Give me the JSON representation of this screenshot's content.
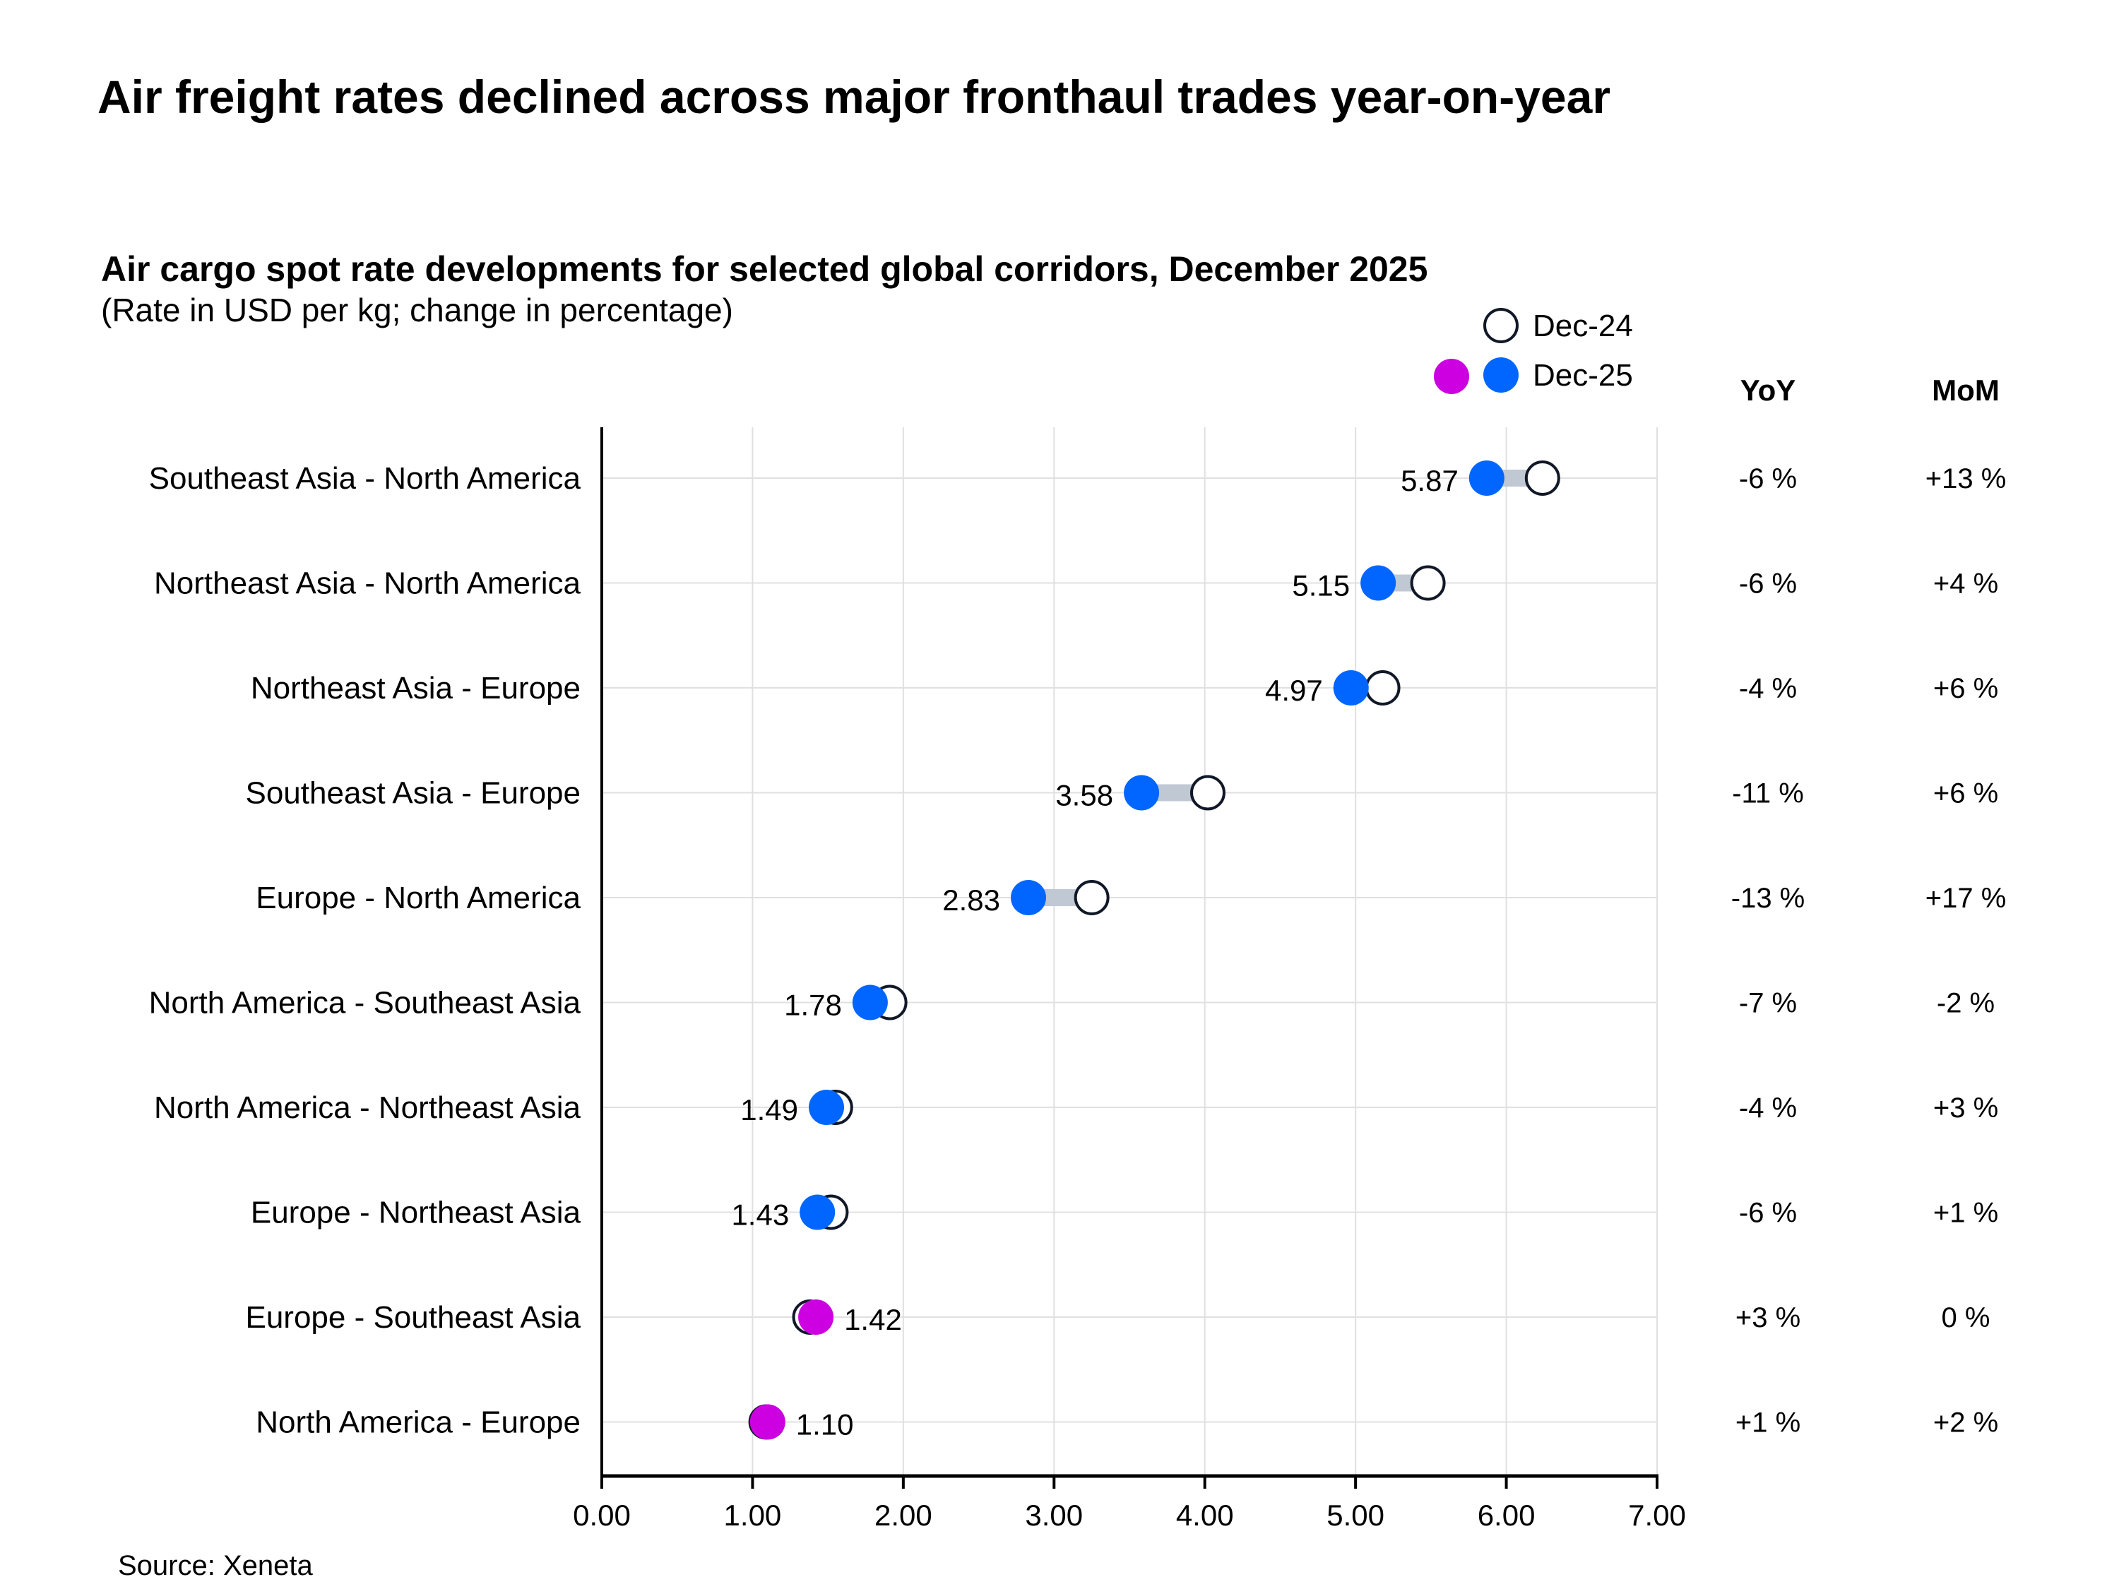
{
  "chart_data": {
    "type": "dumbbell",
    "title": "Air freight rates declined across major fronthaul trades year-on-year",
    "subtitle": "Air cargo spot rate developments for selected global corridors, December 2025",
    "subtitle_note": "(Rate in USD per kg; change in percentage)",
    "source": "Source: Xeneta",
    "xlim": [
      0,
      7
    ],
    "x_ticks": [
      "0.00",
      "1.00",
      "2.00",
      "3.00",
      "4.00",
      "5.00",
      "6.00",
      "7.00"
    ],
    "grid": true,
    "legend": {
      "placement": "top-right",
      "entries": [
        {
          "label": "Dec-24",
          "style": "hollow"
        },
        {
          "label": "Dec-25",
          "style": "filled"
        }
      ]
    },
    "columns": {
      "yoy": "YoY",
      "mom": "MoM"
    },
    "colors": {
      "decline": "#0066ff",
      "increase": "#cc00e0",
      "connector": "#c0c8d4",
      "hollow_stroke": "#111827",
      "grid": "#e0e0e0"
    },
    "categories": [
      "Southeast Asia - North America",
      "Northeast Asia - North America",
      "Northeast Asia - Europe",
      "Southeast Asia - Europe",
      "Europe - North America",
      "North America - Southeast Asia",
      "North America - Northeast Asia",
      "Europe - Northeast Asia",
      "Europe - Southeast Asia",
      "North America - Europe"
    ],
    "series": [
      {
        "name": "Dec-24",
        "values": [
          6.24,
          5.48,
          5.18,
          4.02,
          3.25,
          1.91,
          1.55,
          1.52,
          1.38,
          1.09
        ]
      },
      {
        "name": "Dec-25",
        "values": [
          5.87,
          5.15,
          4.97,
          3.58,
          2.83,
          1.78,
          1.49,
          1.43,
          1.42,
          1.1
        ]
      }
    ],
    "data_labels": [
      "5.87",
      "5.15",
      "4.97",
      "3.58",
      "2.83",
      "1.78",
      "1.49",
      "1.43",
      "1.42",
      "1.10"
    ],
    "yoy": [
      "-6 %",
      "-6 %",
      "-4 %",
      "-11 %",
      "-13 %",
      "-7 %",
      "-4 %",
      "-6 %",
      "+3 %",
      "+1 %"
    ],
    "mom": [
      "+13 %",
      "+4 %",
      "+6 %",
      "+6 %",
      "+17 %",
      "-2 %",
      "+3 %",
      "+1 %",
      "0 %",
      "+2 %"
    ]
  }
}
